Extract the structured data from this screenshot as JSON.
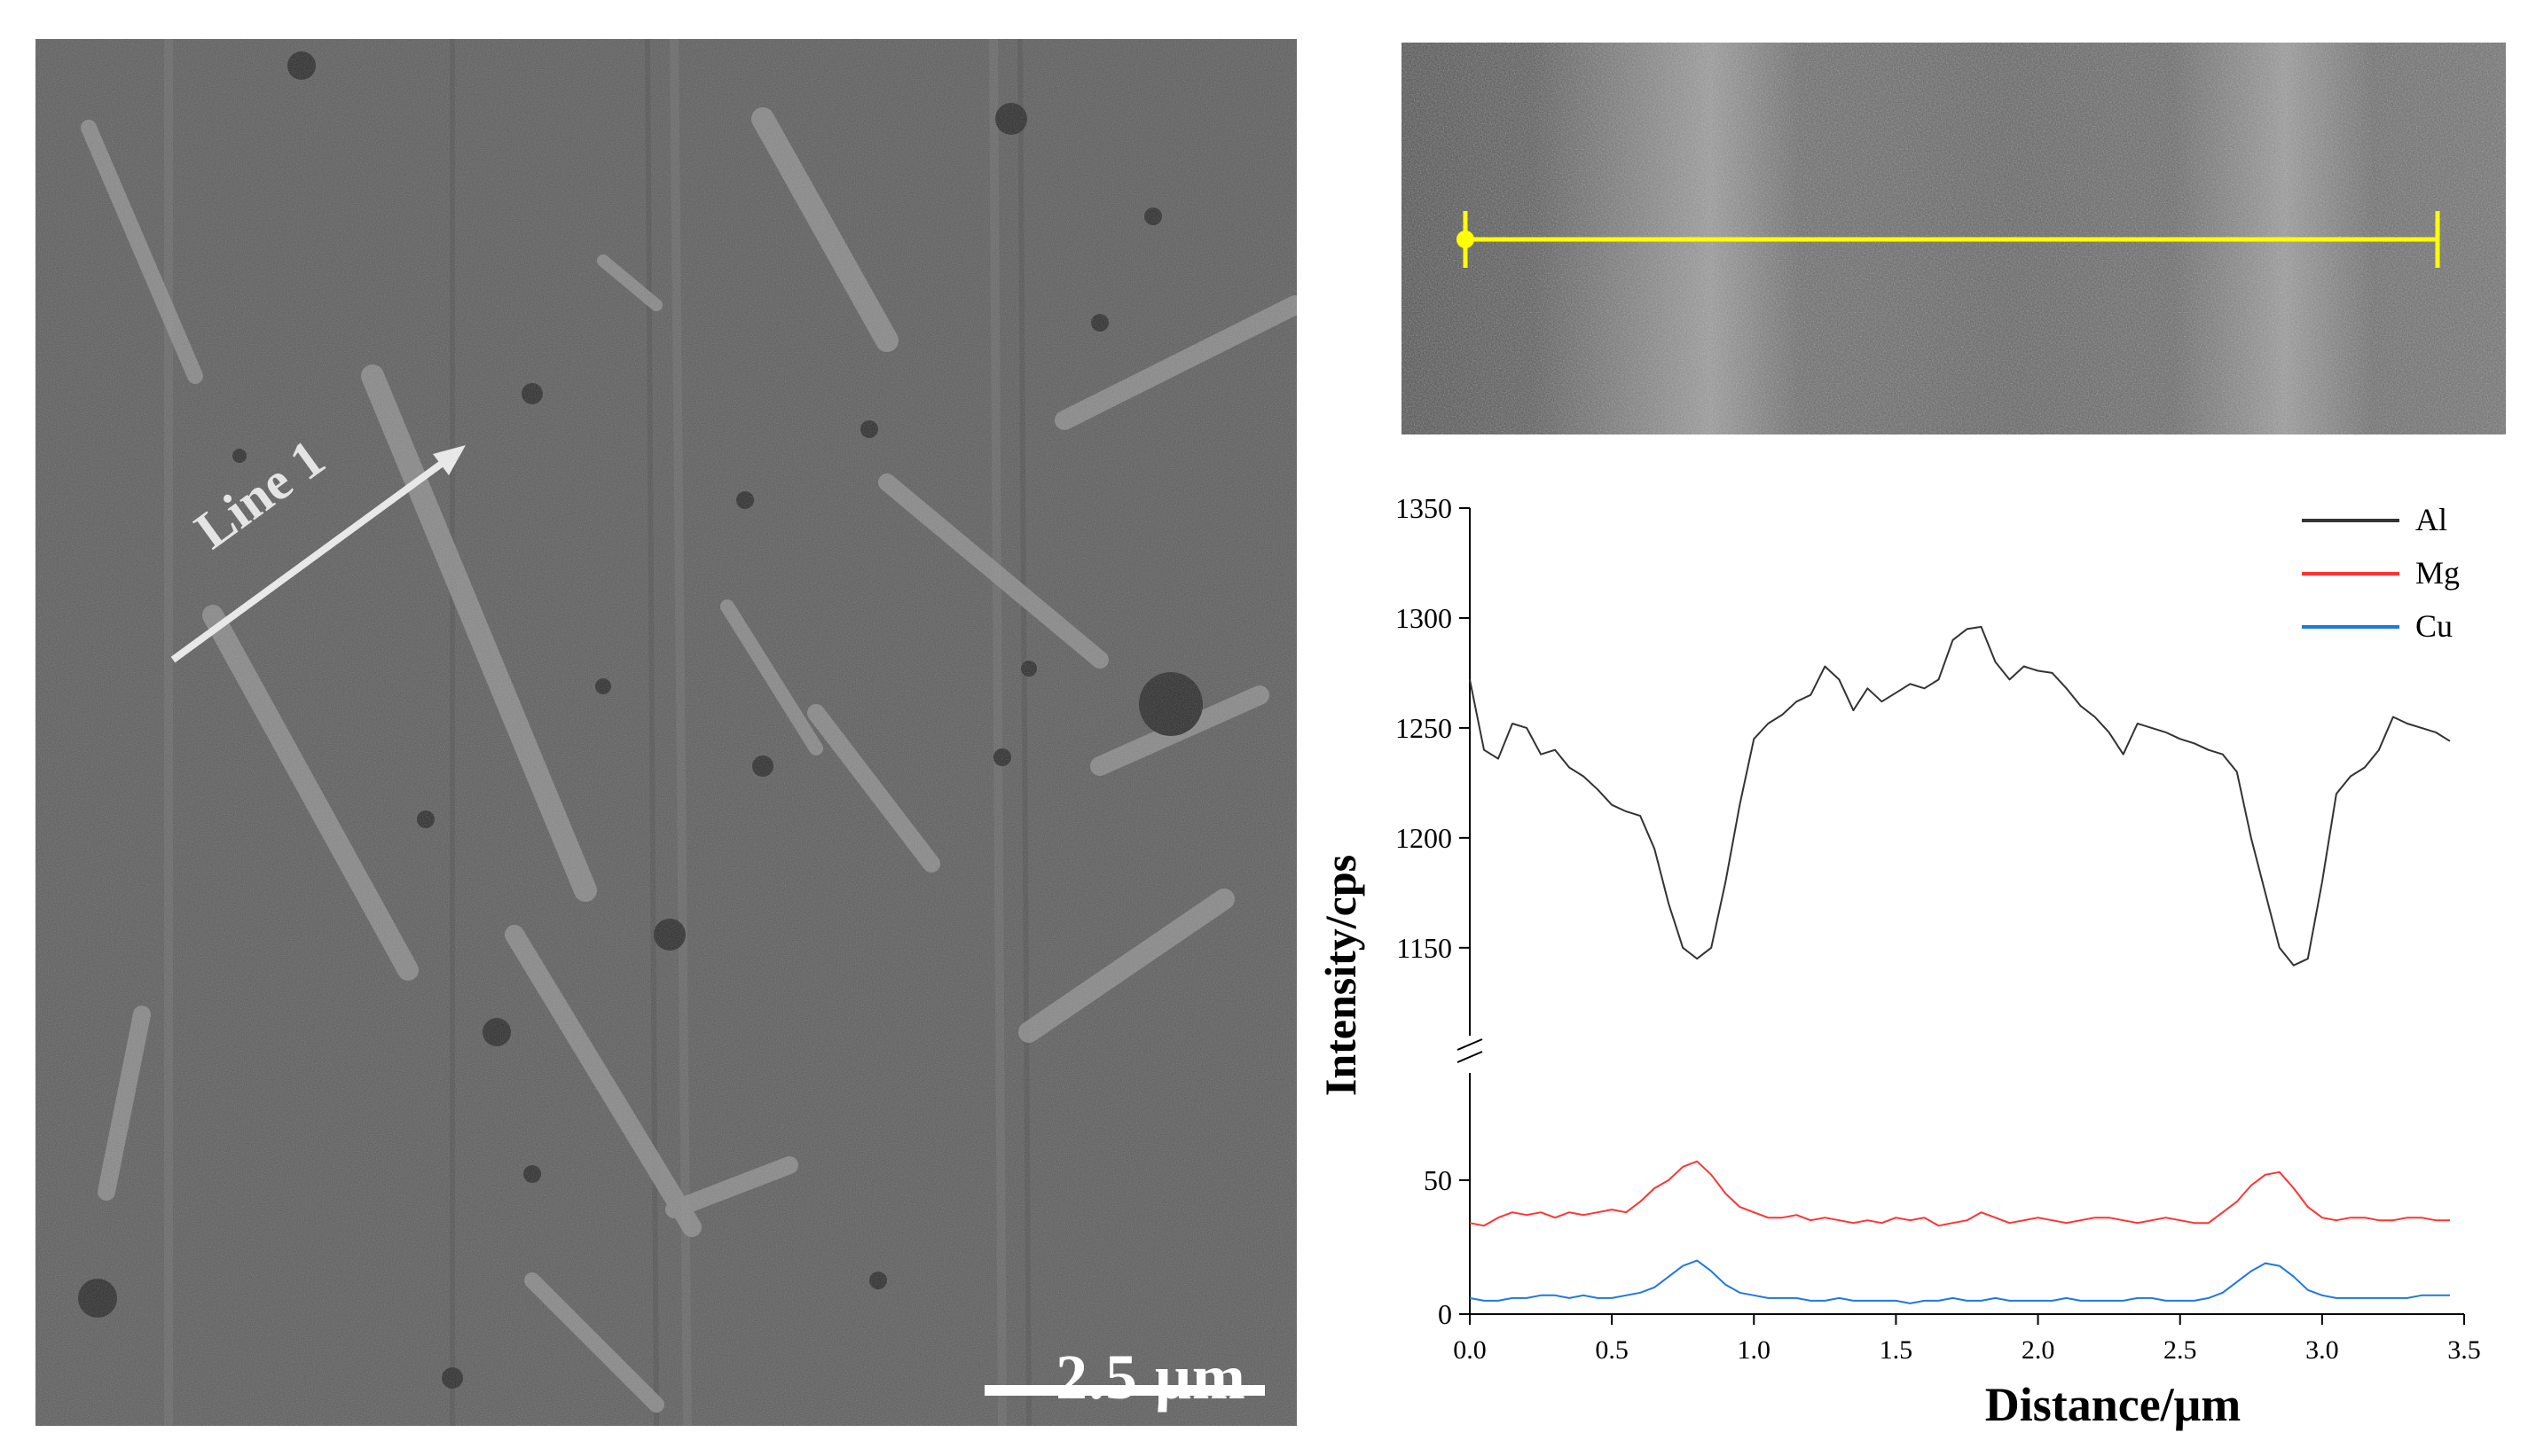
{
  "sem_image": {
    "arrow_label": "Line 1",
    "scale_bar_label": "2.5 μm"
  },
  "line_scan_image": {
    "marker_color": "#ffff00"
  },
  "chart_data": {
    "type": "line",
    "xlabel": "Distance/μm",
    "ylabel": "Intensity/cps",
    "xlim": [
      0,
      3.5
    ],
    "x_ticks": [
      "0.0",
      "0.5",
      "1.0",
      "1.5",
      "2.0",
      "2.5",
      "3.0",
      "3.5"
    ],
    "y_ticks_upper": [
      "1150",
      "1200",
      "1250",
      "1300",
      "1350"
    ],
    "y_ticks_lower": [
      "0",
      "50"
    ],
    "axis_break": true,
    "ylim_upper": [
      1110,
      1350
    ],
    "ylim_lower": [
      0,
      90
    ],
    "grid": false,
    "legend_position": "top-right",
    "x": [
      0.0,
      0.05,
      0.1,
      0.15,
      0.2,
      0.25,
      0.3,
      0.35,
      0.4,
      0.45,
      0.5,
      0.55,
      0.6,
      0.65,
      0.7,
      0.75,
      0.8,
      0.85,
      0.9,
      0.95,
      1.0,
      1.05,
      1.1,
      1.15,
      1.2,
      1.25,
      1.3,
      1.35,
      1.4,
      1.45,
      1.5,
      1.55,
      1.6,
      1.65,
      1.7,
      1.75,
      1.8,
      1.85,
      1.9,
      1.95,
      2.0,
      2.05,
      2.1,
      2.15,
      2.2,
      2.25,
      2.3,
      2.35,
      2.4,
      2.45,
      2.5,
      2.55,
      2.6,
      2.65,
      2.7,
      2.75,
      2.8,
      2.85,
      2.9,
      2.95,
      3.0,
      3.05,
      3.1,
      3.15,
      3.2,
      3.25,
      3.3,
      3.35,
      3.4,
      3.45
    ],
    "series": [
      {
        "name": "Al",
        "color": "#333333",
        "values": [
          1272,
          1240,
          1236,
          1252,
          1250,
          1238,
          1240,
          1232,
          1228,
          1222,
          1215,
          1212,
          1210,
          1195,
          1170,
          1150,
          1145,
          1150,
          1180,
          1215,
          1245,
          1252,
          1256,
          1262,
          1265,
          1278,
          1272,
          1258,
          1268,
          1262,
          1266,
          1270,
          1268,
          1272,
          1290,
          1295,
          1296,
          1280,
          1272,
          1278,
          1276,
          1275,
          1268,
          1260,
          1255,
          1248,
          1238,
          1252,
          1250,
          1248,
          1245,
          1243,
          1240,
          1238,
          1230,
          1200,
          1175,
          1150,
          1142,
          1145,
          1180,
          1220,
          1228,
          1232,
          1240,
          1255,
          1252,
          1250,
          1248,
          1244
        ]
      },
      {
        "name": "Mg",
        "color": "#ff3333",
        "values": [
          34,
          33,
          36,
          38,
          37,
          38,
          36,
          38,
          37,
          38,
          39,
          38,
          42,
          47,
          50,
          55,
          57,
          52,
          45,
          40,
          38,
          36,
          36,
          37,
          35,
          36,
          35,
          34,
          35,
          34,
          36,
          35,
          36,
          33,
          34,
          35,
          38,
          36,
          34,
          35,
          36,
          35,
          34,
          35,
          36,
          36,
          35,
          34,
          35,
          36,
          35,
          34,
          34,
          38,
          42,
          48,
          52,
          53,
          47,
          40,
          36,
          35,
          36,
          36,
          35,
          35,
          36,
          36,
          35,
          35
        ]
      },
      {
        "name": "Cu",
        "color": "#1f78e0",
        "values": [
          6,
          5,
          5,
          6,
          6,
          7,
          7,
          6,
          7,
          6,
          6,
          7,
          8,
          10,
          14,
          18,
          20,
          16,
          11,
          8,
          7,
          6,
          6,
          6,
          5,
          5,
          6,
          5,
          5,
          5,
          5,
          4,
          5,
          5,
          6,
          5,
          5,
          6,
          5,
          5,
          5,
          5,
          6,
          5,
          5,
          5,
          5,
          6,
          6,
          5,
          5,
          5,
          6,
          8,
          12,
          16,
          19,
          18,
          14,
          9,
          7,
          6,
          6,
          6,
          6,
          6,
          6,
          7,
          7,
          7
        ]
      }
    ]
  }
}
